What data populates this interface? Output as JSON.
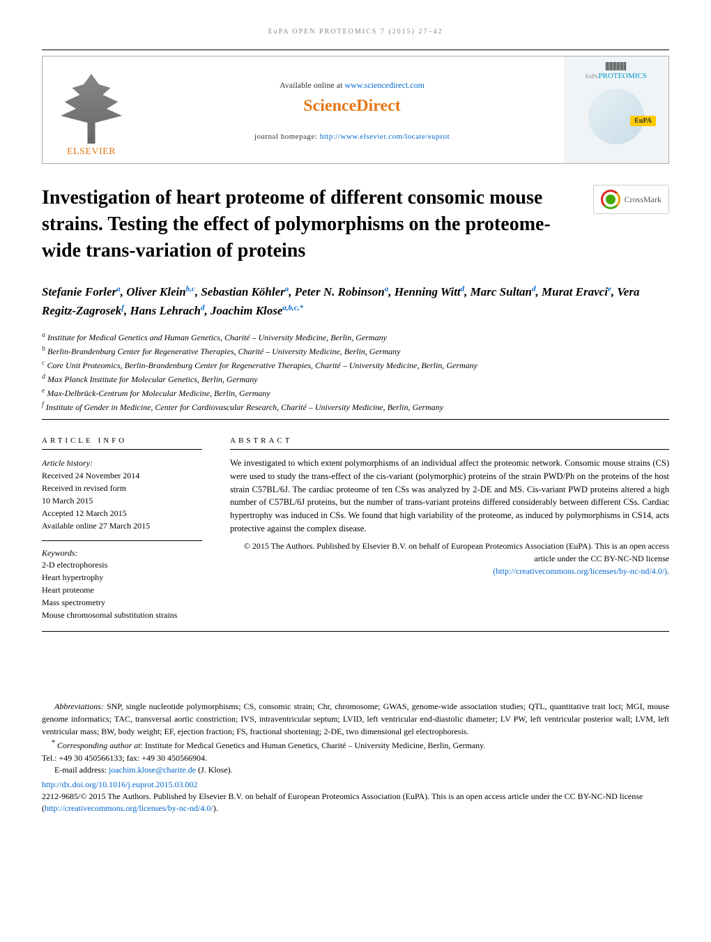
{
  "runningHeader": "EuPA OPEN PROTEOMICS 7 (2015) 27–42",
  "banner": {
    "publisherName": "ELSEVIER",
    "availableText": "Available online at ",
    "availableLink": "www.sciencedirect.com",
    "sdLogo": "ScienceDirect",
    "journalHomeLabel": "journal homepage: ",
    "journalHomeLink": "http://www.elsevier.com/locate/euprot",
    "coverTitle": "PROTEOMICS",
    "coverEupa": "EuPA"
  },
  "article": {
    "title": "Investigation of heart proteome of different consomic mouse strains. Testing the effect of polymorphisms on the proteome-wide trans-variation of proteins",
    "crossmark": "CrossMark"
  },
  "authors": [
    {
      "name": "Stefanie Forler",
      "aff": "a"
    },
    {
      "name": "Oliver Klein",
      "aff": "b,c"
    },
    {
      "name": "Sebastian Köhler",
      "aff": "a"
    },
    {
      "name": "Peter N. Robinson",
      "aff": "a"
    },
    {
      "name": "Henning Witt",
      "aff": "d"
    },
    {
      "name": "Marc Sultan",
      "aff": "d"
    },
    {
      "name": "Murat Eravci",
      "aff": "e"
    },
    {
      "name": "Vera Regitz-Zagrosek",
      "aff": "f"
    },
    {
      "name": "Hans Lehrach",
      "aff": "d"
    },
    {
      "name": "Joachim Klose",
      "aff": "a,b,c,*"
    }
  ],
  "affiliations": [
    {
      "label": "a",
      "text": "Institute for Medical Genetics and Human Genetics, Charité – University Medicine, Berlin, Germany"
    },
    {
      "label": "b",
      "text": "Berlin-Brandenburg Center for Regenerative Therapies, Charité – University Medicine, Berlin, Germany"
    },
    {
      "label": "c",
      "text": "Core Unit Proteomics, Berlin-Brandenburg Center for Regenerative Therapies, Charité – University Medicine, Berlin, Germany"
    },
    {
      "label": "d",
      "text": "Max Planck Institute for Molecular Genetics, Berlin, Germany"
    },
    {
      "label": "e",
      "text": "Max-Delbrück-Centrum for Molecular Medicine, Berlin, Germany"
    },
    {
      "label": "f",
      "text": "Institute of Gender in Medicine, Center for Cardiovascular Research, Charité – University Medicine, Berlin, Germany"
    }
  ],
  "info": {
    "heading": "ARTICLE INFO",
    "historyLabel": "Article history:",
    "history": [
      "Received 24 November 2014",
      "Received in revised form",
      "10 March 2015",
      "Accepted 12 March 2015",
      "Available online 27 March 2015"
    ],
    "keywordsLabel": "Keywords:",
    "keywords": [
      "2-D electrophoresis",
      "Heart hypertrophy",
      "Heart proteome",
      "Mass spectrometry",
      "Mouse chromosomal substitution strains"
    ]
  },
  "abstract": {
    "heading": "ABSTRACT",
    "text": "We investigated to which extent polymorphisms of an individual affect the proteomic network. Consomic mouse strains (CS) were used to study the trans-effect of the cis-variant (polymorphic) proteins of the strain PWD/Ph on the proteins of the host strain C57BL/6J. The cardiac proteome of ten CSs was analyzed by 2-DE and MS. Cis-variant PWD proteins altered a high number of C57BL/6J proteins, but the number of trans-variant proteins differed considerably between different CSs. Cardiac hypertrophy was induced in CSs. We found that high variability of the proteome, as induced by polymorphisms in CS14, acts protective against the complex disease.",
    "copyright": "© 2015 The Authors. Published by Elsevier B.V. on behalf of European Proteomics Association (EuPA). This is an open access article under the CC BY-NC-ND license",
    "licenseLink": "(http://creativecommons.org/licenses/by-nc-nd/4.0/)"
  },
  "abbrev": {
    "label": "Abbreviations:",
    "text": " SNP, single nucleotide polymorphisms; CS, consomic strain; Chr, chromosome; GWAS, genome-wide association studies; QTL, quantitative trait loci; MGI, mouse genome informatics; TAC, transversal aortic constriction; IVS, intraventricular septum; LVID, left ventricular end-diastolic diameter; LV PW, left ventricular posterior wall; LVM, left ventricular mass; BW, body weight; EF, ejection fraction; FS, fractional shortening; 2-DE, two dimensional gel electrophoresis."
  },
  "corresponding": {
    "label": "Corresponding author at",
    "text": ": Institute for Medical Genetics and Human Genetics, Charité – University Medicine, Berlin, Germany.",
    "tel": "Tel.: +49 30 450566133; fax: +49 30 450566904.",
    "emailLabel": "E-mail address: ",
    "email": "joachim.klose@charite.de",
    "emailSuffix": " (J. Klose)."
  },
  "footer": {
    "doi": "http://dx.doi.org/10.1016/j.euprot.2015.03.002",
    "issn": "2212-9685/© 2015 The Authors. Published by Elsevier B.V. on behalf of European Proteomics Association (EuPA). This is an open access article under the CC BY-NC-ND license (",
    "licenseLink": "http://creativecommons.org/licenses/by-nc-nd/4.0/",
    "licenseSuffix": ")."
  },
  "colors": {
    "link": "#0066cc",
    "orange": "#e67817",
    "text": "#000000",
    "gray": "#888888"
  },
  "typography": {
    "title_fontsize": 28,
    "body_fontsize": 12,
    "authors_fontsize": 17
  }
}
